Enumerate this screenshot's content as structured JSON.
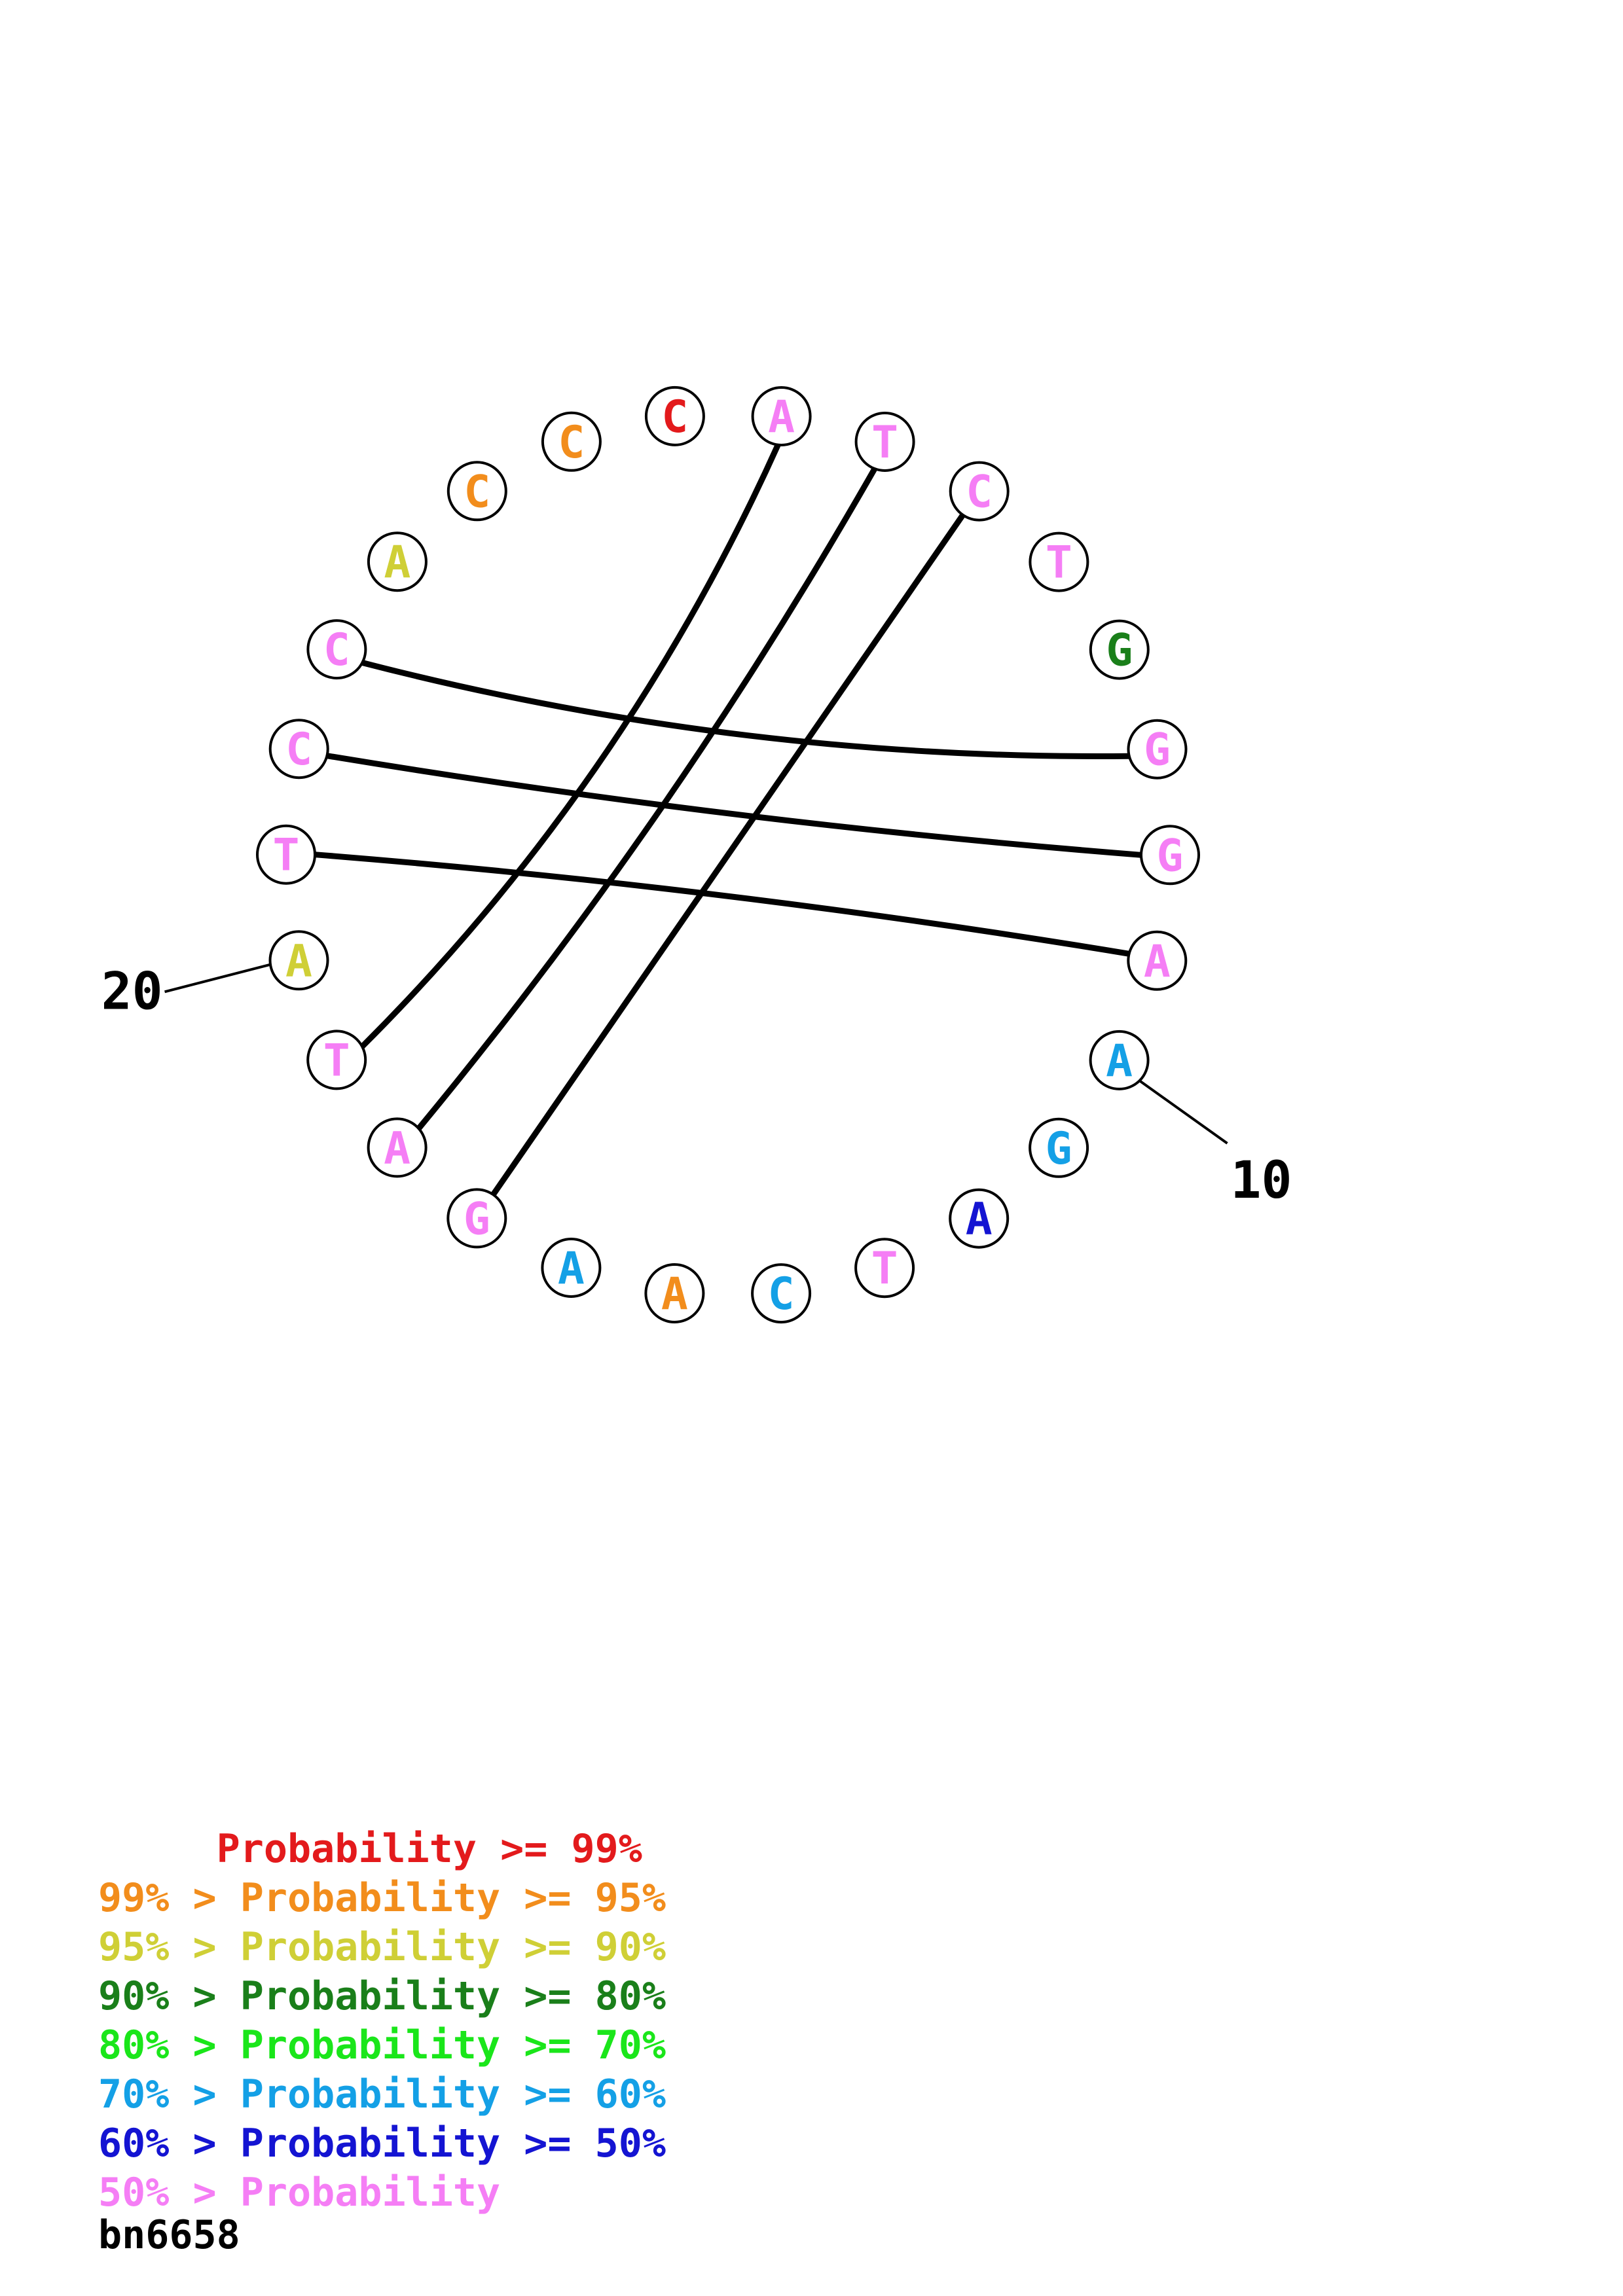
{
  "colors": {
    "p99": "#e31a1c",
    "p95": "#f28d1c",
    "p90": "#cfcf36",
    "p80": "#1a7f1a",
    "p70": "#1ae61a",
    "p60": "#14a0e6",
    "p50": "#1414d2",
    "low": "#f57ef5",
    "line": "#000000"
  },
  "nucleotides": [
    {
      "index": 1,
      "base": "C",
      "prob": "p99"
    },
    {
      "index": 2,
      "base": "A",
      "prob": "low"
    },
    {
      "index": 3,
      "base": "T",
      "prob": "low"
    },
    {
      "index": 4,
      "base": "C",
      "prob": "low"
    },
    {
      "index": 5,
      "base": "T",
      "prob": "low"
    },
    {
      "index": 6,
      "base": "G",
      "prob": "p80"
    },
    {
      "index": 7,
      "base": "G",
      "prob": "low"
    },
    {
      "index": 8,
      "base": "G",
      "prob": "low"
    },
    {
      "index": 9,
      "base": "A",
      "prob": "low"
    },
    {
      "index": 10,
      "base": "A",
      "prob": "p60"
    },
    {
      "index": 11,
      "base": "G",
      "prob": "p60"
    },
    {
      "index": 12,
      "base": "A",
      "prob": "p50"
    },
    {
      "index": 13,
      "base": "T",
      "prob": "low"
    },
    {
      "index": 14,
      "base": "C",
      "prob": "p60"
    },
    {
      "index": 15,
      "base": "A",
      "prob": "p95"
    },
    {
      "index": 16,
      "base": "A",
      "prob": "p60"
    },
    {
      "index": 17,
      "base": "G",
      "prob": "low"
    },
    {
      "index": 18,
      "base": "A",
      "prob": "low"
    },
    {
      "index": 19,
      "base": "T",
      "prob": "low"
    },
    {
      "index": 20,
      "base": "A",
      "prob": "p90"
    },
    {
      "index": 21,
      "base": "T",
      "prob": "low"
    },
    {
      "index": 22,
      "base": "C",
      "prob": "low"
    },
    {
      "index": 23,
      "base": "C",
      "prob": "low"
    },
    {
      "index": 24,
      "base": "A",
      "prob": "p90"
    },
    {
      "index": 25,
      "base": "C",
      "prob": "p95"
    },
    {
      "index": 26,
      "base": "C",
      "prob": "p95"
    }
  ],
  "pairs": [
    [
      2,
      19
    ],
    [
      3,
      18
    ],
    [
      4,
      17
    ],
    [
      7,
      23
    ],
    [
      8,
      22
    ],
    [
      9,
      21
    ]
  ],
  "index_labels": [
    {
      "text": "10",
      "nucleotide": 10
    },
    {
      "text": "20",
      "nucleotide": 20
    }
  ],
  "legend": [
    {
      "text": "     Probability >= 99%",
      "prob": "p99"
    },
    {
      "text": "99% > Probability >= 95%",
      "prob": "p95"
    },
    {
      "text": "95% > Probability >= 90%",
      "prob": "p90"
    },
    {
      "text": "90% > Probability >= 80%",
      "prob": "p80"
    },
    {
      "text": "80% > Probability >= 70%",
      "prob": "p70"
    },
    {
      "text": "70% > Probability >= 60%",
      "prob": "p60"
    },
    {
      "text": "60% > Probability >= 50%",
      "prob": "p50"
    },
    {
      "text": "50% > Probability",
      "prob": "low"
    }
  ],
  "sequence_id": "bn6658"
}
